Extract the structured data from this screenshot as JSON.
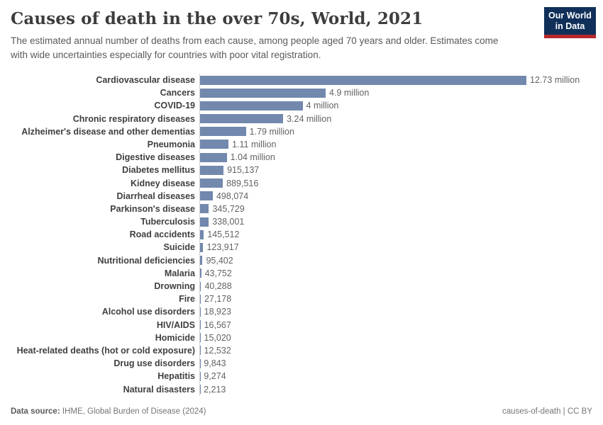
{
  "header": {
    "title": "Causes of death in the over 70s, World, 2021",
    "subtitle": "The estimated annual number of deaths from each cause, among people aged 70 years and older. Estimates come with wide uncertainties especially for countries with poor vital registration.",
    "logo": {
      "line1": "Our World",
      "line2": "in Data",
      "bg_color": "#10305a",
      "stripe_color": "#b5292a"
    }
  },
  "chart_data": {
    "type": "bar",
    "orientation": "horizontal",
    "title": "Causes of death in the over 70s, World, 2021",
    "unit": "deaths",
    "xlim": [
      0,
      12730000
    ],
    "grid": false,
    "legend": "none",
    "bar_color": "#7288ad",
    "axis_line_color": "#d4d4d4",
    "categories": [
      "Cardiovascular disease",
      "Cancers",
      "COVID-19",
      "Chronic respiratory diseases",
      "Alzheimer's disease and other dementias",
      "Pneumonia",
      "Digestive diseases",
      "Diabetes mellitus",
      "Kidney disease",
      "Diarrheal diseases",
      "Parkinson's disease",
      "Tuberculosis",
      "Road accidents",
      "Suicide",
      "Nutritional deficiencies",
      "Malaria",
      "Drowning",
      "Fire",
      "Alcohol use disorders",
      "HIV/AIDS",
      "Homicide",
      "Heat-related deaths (hot or cold exposure)",
      "Drug use disorders",
      "Hepatitis",
      "Natural disasters"
    ],
    "values": [
      12730000,
      4900000,
      4000000,
      3240000,
      1790000,
      1110000,
      1040000,
      915137,
      889516,
      498074,
      345729,
      338001,
      145512,
      123917,
      95402,
      43752,
      40288,
      27178,
      18923,
      16567,
      15020,
      12532,
      9843,
      9274,
      2213
    ],
    "value_labels": [
      "12.73 million",
      "4.9 million",
      "4 million",
      "3.24 million",
      "1.79 million",
      "1.11 million",
      "1.04 million",
      "915,137",
      "889,516",
      "498,074",
      "345,729",
      "338,001",
      "145,512",
      "123,917",
      "95,402",
      "43,752",
      "40,288",
      "27,178",
      "18,923",
      "16,567",
      "15,020",
      "12,532",
      "9,843",
      "9,274",
      "2,213"
    ]
  },
  "footer": {
    "datasource_label": "Data source:",
    "datasource_value": " IHME, Global Burden of Disease (2024)",
    "license": "causes-of-death | CC BY"
  }
}
